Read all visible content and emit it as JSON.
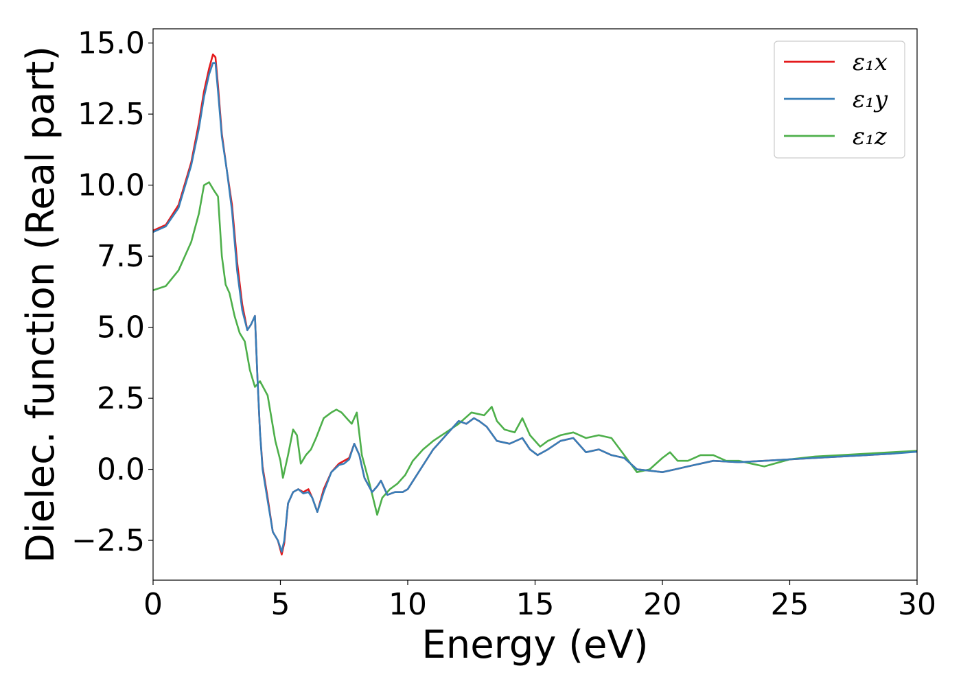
{
  "chart_data": {
    "type": "line",
    "xlabel": "Energy (eV)",
    "ylabel": "Dielec. function (Real part)",
    "xlim": [
      0,
      30
    ],
    "ylim": [
      -3.9,
      15.5
    ],
    "xticks": [
      0,
      5,
      10,
      15,
      20,
      25,
      30
    ],
    "xtick_labels": [
      "0",
      "5",
      "10",
      "15",
      "20",
      "25",
      "30"
    ],
    "yticks": [
      -2.5,
      0.0,
      2.5,
      5.0,
      7.5,
      10.0,
      12.5,
      15.0
    ],
    "ytick_labels": [
      "−2.5",
      "0.0",
      "2.5",
      "5.0",
      "7.5",
      "10.0",
      "12.5",
      "15.0"
    ],
    "grid": false,
    "legend_position": "top-right",
    "series": [
      {
        "name": "ε₁x",
        "color": "#e41a1c",
        "x": [
          0,
          0.5,
          1.0,
          1.5,
          1.8,
          2.0,
          2.2,
          2.35,
          2.45,
          2.55,
          2.7,
          2.9,
          3.1,
          3.3,
          3.5,
          3.7,
          3.85,
          4.0,
          4.1,
          4.2,
          4.3,
          4.5,
          4.7,
          4.9,
          5.05,
          5.15,
          5.3,
          5.5,
          5.7,
          5.9,
          6.1,
          6.25,
          6.45,
          6.7,
          7.0,
          7.3,
          7.5,
          7.7,
          7.9,
          8.1,
          8.3,
          8.6,
          8.8,
          8.95,
          9.2,
          9.5,
          9.8,
          10.0,
          10.5,
          11.0,
          11.5,
          11.8,
          12.0,
          12.3,
          12.6,
          12.8,
          13.1,
          13.5,
          14.0,
          14.5,
          14.8,
          15.1,
          15.5,
          16.0,
          16.5,
          17.0,
          17.5,
          18.0,
          18.5,
          19.0,
          19.5,
          20.0,
          20.5,
          21.0,
          21.5,
          22.0,
          23.0,
          24.0,
          25.0,
          26.0,
          27.0,
          28.0,
          29.0,
          30.0
        ],
        "y": [
          8.4,
          8.6,
          9.3,
          10.8,
          12.2,
          13.3,
          14.1,
          14.6,
          14.5,
          13.5,
          11.8,
          10.5,
          9.3,
          7.3,
          5.8,
          4.9,
          5.1,
          5.4,
          3.2,
          1.3,
          0.1,
          -1.0,
          -2.2,
          -2.5,
          -3.0,
          -2.6,
          -1.2,
          -0.8,
          -0.7,
          -0.8,
          -0.7,
          -1.0,
          -1.5,
          -0.7,
          -0.1,
          0.2,
          0.3,
          0.4,
          0.9,
          0.5,
          -0.3,
          -0.8,
          -0.6,
          -0.4,
          -0.9,
          -0.8,
          -0.8,
          -0.7,
          0.0,
          0.7,
          1.2,
          1.5,
          1.7,
          1.6,
          1.8,
          1.7,
          1.5,
          1.0,
          0.9,
          1.1,
          0.7,
          0.5,
          0.7,
          1.0,
          1.1,
          0.6,
          0.7,
          0.5,
          0.4,
          0.0,
          -0.05,
          -0.1,
          0.0,
          0.1,
          0.2,
          0.3,
          0.25,
          0.3,
          0.35,
          0.4,
          0.45,
          0.5,
          0.55,
          0.65
        ]
      },
      {
        "name": "ε₁y",
        "color": "#377eb8",
        "x": [
          0,
          0.5,
          1.0,
          1.5,
          1.8,
          2.0,
          2.2,
          2.35,
          2.45,
          2.55,
          2.7,
          2.9,
          3.1,
          3.3,
          3.5,
          3.7,
          3.85,
          4.0,
          4.1,
          4.2,
          4.3,
          4.5,
          4.7,
          4.9,
          5.05,
          5.15,
          5.3,
          5.5,
          5.7,
          5.9,
          6.1,
          6.25,
          6.45,
          6.7,
          7.0,
          7.3,
          7.5,
          7.7,
          7.9,
          8.1,
          8.3,
          8.6,
          8.8,
          8.95,
          9.2,
          9.5,
          9.8,
          10.0,
          10.5,
          11.0,
          11.5,
          11.8,
          12.0,
          12.3,
          12.6,
          12.8,
          13.1,
          13.5,
          14.0,
          14.5,
          14.8,
          15.1,
          15.5,
          16.0,
          16.5,
          17.0,
          17.5,
          18.0,
          18.5,
          19.0,
          19.5,
          20.0,
          20.5,
          21.0,
          21.5,
          22.0,
          23.0,
          24.0,
          25.0,
          26.0,
          27.0,
          28.0,
          29.0,
          30.0
        ],
        "y": [
          8.35,
          8.55,
          9.2,
          10.7,
          12.0,
          13.1,
          13.9,
          14.3,
          14.3,
          13.3,
          11.7,
          10.5,
          9.1,
          7.0,
          5.6,
          4.9,
          5.1,
          5.4,
          3.2,
          1.3,
          0.0,
          -1.1,
          -2.2,
          -2.5,
          -2.9,
          -2.5,
          -1.2,
          -0.8,
          -0.7,
          -0.85,
          -0.8,
          -1.0,
          -1.5,
          -0.8,
          -0.1,
          0.15,
          0.2,
          0.35,
          0.9,
          0.5,
          -0.3,
          -0.8,
          -0.6,
          -0.4,
          -0.9,
          -0.8,
          -0.8,
          -0.7,
          0.0,
          0.7,
          1.2,
          1.5,
          1.7,
          1.6,
          1.8,
          1.7,
          1.5,
          1.0,
          0.9,
          1.1,
          0.7,
          0.5,
          0.7,
          1.0,
          1.1,
          0.6,
          0.7,
          0.5,
          0.4,
          0.0,
          -0.05,
          -0.1,
          0.0,
          0.1,
          0.2,
          0.3,
          0.25,
          0.3,
          0.35,
          0.4,
          0.45,
          0.5,
          0.55,
          0.62
        ]
      },
      {
        "name": "ε₁z",
        "color": "#4daf4a",
        "x": [
          0,
          0.5,
          1.0,
          1.5,
          1.8,
          2.0,
          2.2,
          2.4,
          2.55,
          2.7,
          2.85,
          3.0,
          3.2,
          3.4,
          3.6,
          3.8,
          4.0,
          4.2,
          4.5,
          4.8,
          5.0,
          5.1,
          5.3,
          5.5,
          5.65,
          5.8,
          6.0,
          6.2,
          6.4,
          6.7,
          7.0,
          7.2,
          7.4,
          7.6,
          7.8,
          8.0,
          8.2,
          8.5,
          8.8,
          9.0,
          9.3,
          9.6,
          9.9,
          10.2,
          10.6,
          11.0,
          11.5,
          12.0,
          12.5,
          13.0,
          13.3,
          13.5,
          13.8,
          14.2,
          14.5,
          14.8,
          15.2,
          15.5,
          16.0,
          16.5,
          17.0,
          17.5,
          18.0,
          18.5,
          19.0,
          19.5,
          20.0,
          20.3,
          20.6,
          21.0,
          21.5,
          22.0,
          22.5,
          23.0,
          23.5,
          24.0,
          25.0,
          26.0,
          27.0,
          28.0,
          29.0,
          30.0
        ],
        "y": [
          6.3,
          6.45,
          7.0,
          8.0,
          9.0,
          10.0,
          10.1,
          9.8,
          9.6,
          7.5,
          6.5,
          6.2,
          5.4,
          4.8,
          4.5,
          3.5,
          2.9,
          3.1,
          2.6,
          1.0,
          0.3,
          -0.3,
          0.5,
          1.4,
          1.2,
          0.2,
          0.5,
          0.7,
          1.1,
          1.8,
          2.0,
          2.1,
          2.0,
          1.8,
          1.6,
          2.0,
          0.5,
          -0.5,
          -1.6,
          -1.0,
          -0.7,
          -0.5,
          -0.2,
          0.3,
          0.7,
          1.0,
          1.3,
          1.6,
          2.0,
          1.9,
          2.2,
          1.7,
          1.4,
          1.3,
          1.8,
          1.2,
          0.8,
          1.0,
          1.2,
          1.3,
          1.1,
          1.2,
          1.1,
          0.5,
          -0.1,
          0.0,
          0.4,
          0.6,
          0.3,
          0.3,
          0.5,
          0.5,
          0.3,
          0.3,
          0.2,
          0.1,
          0.35,
          0.45,
          0.5,
          0.55,
          0.6,
          0.65
        ]
      }
    ]
  }
}
